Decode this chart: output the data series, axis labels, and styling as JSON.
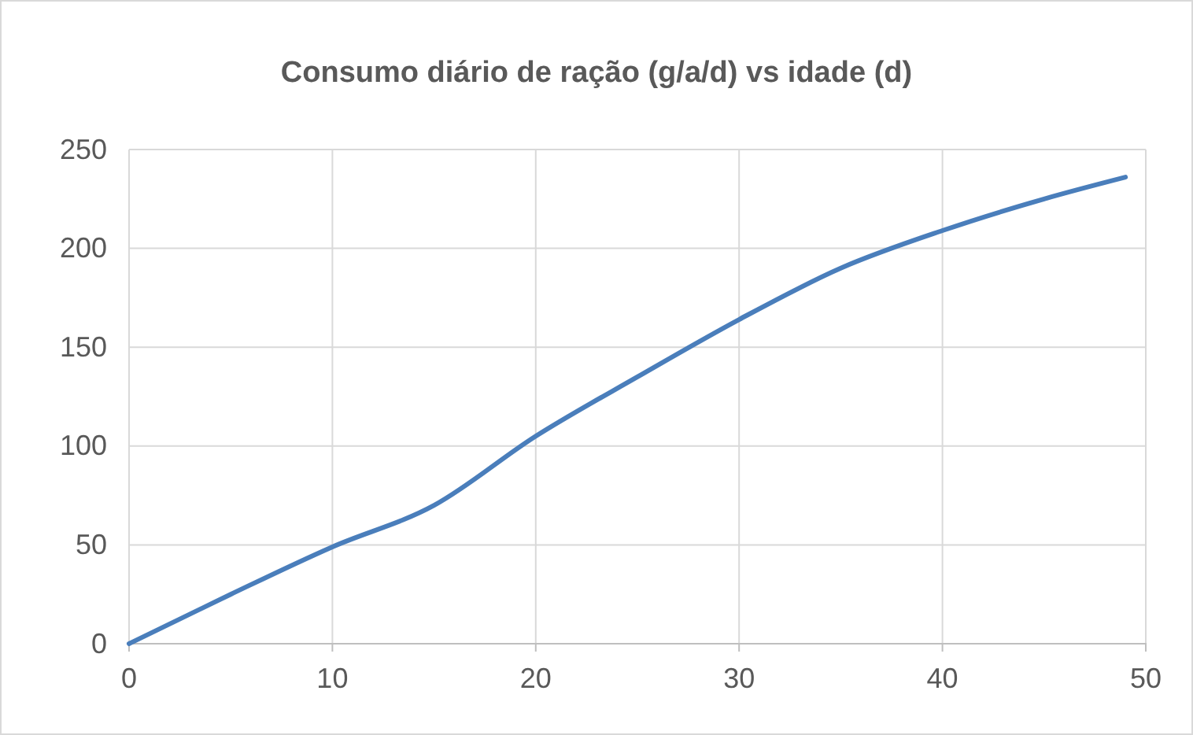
{
  "chart_data": {
    "type": "line",
    "title": "Consumo diário de ração (g/a/d) vs idade (d)",
    "x": [
      0,
      5,
      10,
      15,
      20,
      25,
      30,
      35,
      40,
      45,
      49
    ],
    "series": [
      {
        "color": "#4a7ebb",
        "values": [
          0,
          25,
          49,
          70,
          105,
          135,
          164,
          190,
          209,
          225,
          236
        ]
      }
    ],
    "xlim": [
      0,
      50
    ],
    "xticks": [
      0,
      10,
      20,
      30,
      40,
      50
    ],
    "ylim": [
      0,
      250
    ],
    "yticks": [
      0,
      50,
      100,
      150,
      200,
      250
    ],
    "grid": true,
    "marker": "none",
    "line_style": "solid"
  }
}
